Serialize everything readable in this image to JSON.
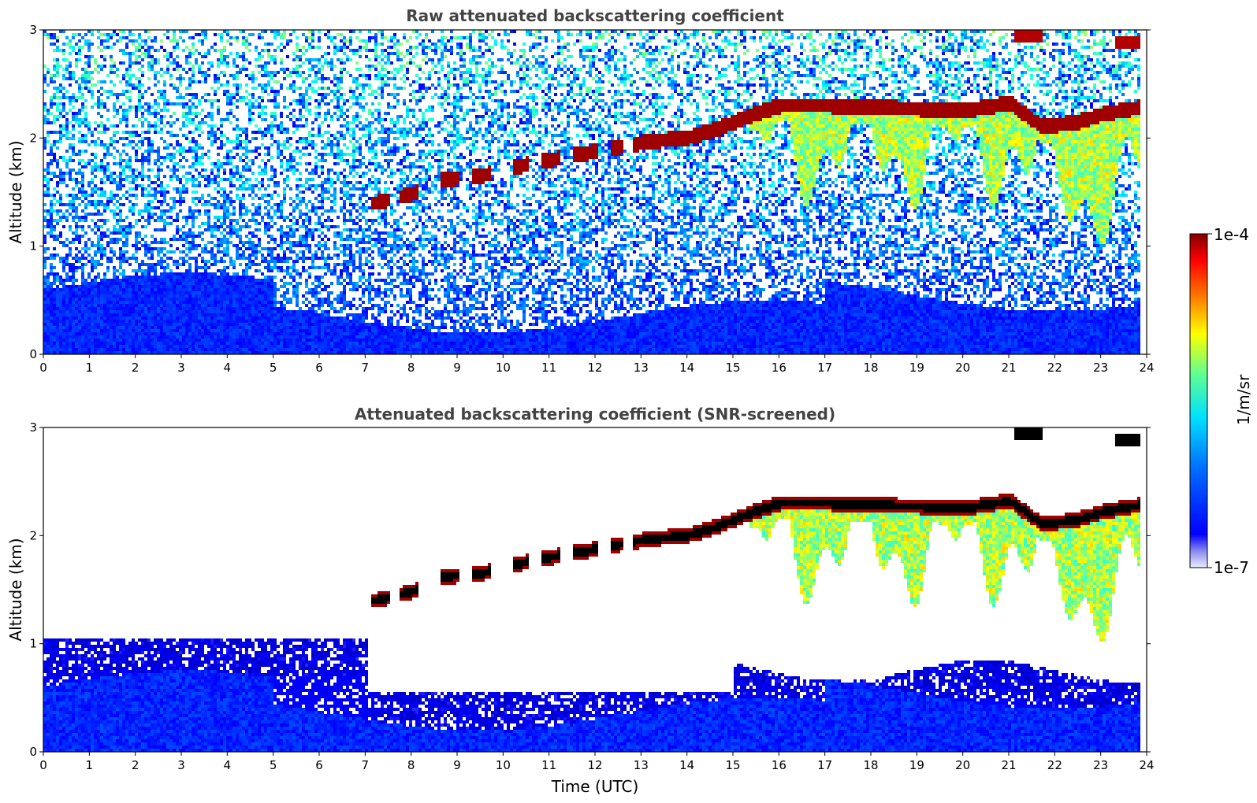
{
  "chart_data": [
    {
      "type": "heatmap",
      "title": "Raw attenuated backscattering coefficient",
      "xlabel": "",
      "ylabel": "Altitude (km)",
      "xlim": [
        0,
        24
      ],
      "ylim": [
        0,
        3
      ],
      "xticks": [
        "0",
        "1",
        "2",
        "3",
        "4",
        "5",
        "6",
        "7",
        "8",
        "9",
        "10",
        "11",
        "12",
        "13",
        "14",
        "15",
        "16",
        "17",
        "18",
        "19",
        "20",
        "21",
        "22",
        "23",
        "24"
      ],
      "yticks": [
        "0",
        "1",
        "2",
        "3"
      ],
      "data_end_hour": 23.8,
      "screened": false,
      "cloud_top_km": [
        {
          "x": 7.2,
          "y": 1.4
        },
        {
          "x": 8.0,
          "y": 1.48
        },
        {
          "x": 8.7,
          "y": 1.62
        },
        {
          "x": 9.5,
          "y": 1.65
        },
        {
          "x": 10.2,
          "y": 1.73
        },
        {
          "x": 11.0,
          "y": 1.8
        },
        {
          "x": 11.8,
          "y": 1.86
        },
        {
          "x": 12.5,
          "y": 1.92
        },
        {
          "x": 13.2,
          "y": 1.97
        },
        {
          "x": 14.0,
          "y": 2.0
        },
        {
          "x": 14.6,
          "y": 2.08
        },
        {
          "x": 15.3,
          "y": 2.2
        },
        {
          "x": 16.0,
          "y": 2.3
        },
        {
          "x": 17.0,
          "y": 2.3
        },
        {
          "x": 18.0,
          "y": 2.28
        },
        {
          "x": 19.0,
          "y": 2.27
        },
        {
          "x": 20.0,
          "y": 2.25
        },
        {
          "x": 21.0,
          "y": 2.32
        },
        {
          "x": 21.7,
          "y": 2.1
        },
        {
          "x": 22.5,
          "y": 2.15
        },
        {
          "x": 23.0,
          "y": 2.22
        },
        {
          "x": 23.8,
          "y": 2.28
        }
      ],
      "upper_layer_km": [
        {
          "x0": 21.1,
          "x1": 21.7,
          "y": 2.93
        },
        {
          "x0": 23.3,
          "x1": 23.8,
          "y": 2.88
        }
      ]
    },
    {
      "type": "heatmap",
      "title": "Attenuated backscattering coefficient (SNR-screened)",
      "xlabel": "Time (UTC)",
      "ylabel": "Altitude (km)",
      "xlim": [
        0,
        24
      ],
      "ylim": [
        0,
        3
      ],
      "xticks": [
        "0",
        "1",
        "2",
        "3",
        "4",
        "5",
        "6",
        "7",
        "8",
        "9",
        "10",
        "11",
        "12",
        "13",
        "14",
        "15",
        "16",
        "17",
        "18",
        "19",
        "20",
        "21",
        "22",
        "23",
        "24"
      ],
      "yticks": [
        "0",
        "1",
        "2",
        "3"
      ],
      "data_end_hour": 23.8,
      "screened": true
    }
  ],
  "colorbar": {
    "label": "1/m/sr",
    "max_label": "1e-4",
    "min_label": "1e-7",
    "colormap": "jet",
    "vmin": 1e-07,
    "vmax": 0.0001,
    "scale": "log"
  },
  "colors": {
    "low": "#e8e8ff",
    "mid_blue": "#0000ff",
    "cyan": "#00ffff",
    "yellow": "#ffff00",
    "dark_red": "#800000",
    "screened_out": "#ffffff",
    "saturated_core": "#000000"
  }
}
